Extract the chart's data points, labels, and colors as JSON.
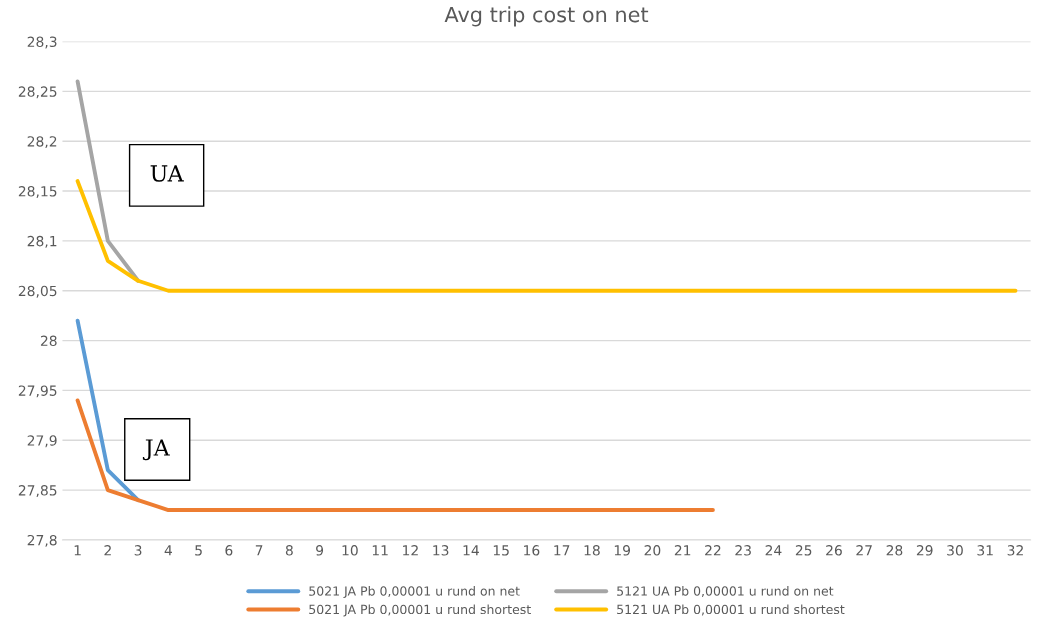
{
  "chart_data": {
    "type": "line",
    "title": "Avg trip cost on net",
    "categories": [
      "1",
      "2",
      "3",
      "4",
      "5",
      "6",
      "7",
      "8",
      "9",
      "10",
      "11",
      "12",
      "13",
      "14",
      "15",
      "16",
      "17",
      "18",
      "19",
      "20",
      "21",
      "22",
      "23",
      "24",
      "25",
      "26",
      "27",
      "28",
      "29",
      "30",
      "31",
      "32"
    ],
    "series": [
      {
        "name": "5021 JA Pb 0,00001 u rund on net",
        "color": "#5b9bd5",
        "values": [
          28.02,
          27.87,
          27.84,
          null,
          null,
          null,
          null,
          null,
          null,
          null,
          null,
          null,
          null,
          null,
          null,
          null,
          null,
          null,
          null,
          null,
          null,
          null,
          null,
          null,
          null,
          null,
          null,
          null,
          null,
          null,
          null,
          null
        ]
      },
      {
        "name": "5021 JA Pb 0,00001 u rund shortest",
        "color": "#ed7d31",
        "values": [
          27.94,
          27.85,
          27.84,
          27.83,
          27.83,
          27.83,
          27.83,
          27.83,
          27.83,
          27.83,
          27.83,
          27.83,
          27.83,
          27.83,
          27.83,
          27.83,
          27.83,
          27.83,
          27.83,
          27.83,
          27.83,
          27.83,
          null,
          null,
          null,
          null,
          null,
          null,
          null,
          null,
          null,
          null
        ]
      },
      {
        "name": "5121 UA Pb 0,00001 u rund on net",
        "color": "#a5a5a5",
        "values": [
          28.26,
          28.1,
          28.06,
          null,
          null,
          null,
          null,
          null,
          null,
          null,
          null,
          null,
          null,
          null,
          null,
          null,
          null,
          null,
          null,
          null,
          null,
          null,
          null,
          null,
          null,
          null,
          null,
          null,
          null,
          null,
          null,
          null
        ]
      },
      {
        "name": "5121 UA Pb 0,00001 u rund shortest",
        "color": "#ffc000",
        "values": [
          28.16,
          28.08,
          28.06,
          28.05,
          28.05,
          28.05,
          28.05,
          28.05,
          28.05,
          28.05,
          28.05,
          28.05,
          28.05,
          28.05,
          28.05,
          28.05,
          28.05,
          28.05,
          28.05,
          28.05,
          28.05,
          28.05,
          28.05,
          28.05,
          28.05,
          28.05,
          28.05,
          28.05,
          28.05,
          28.05,
          28.05,
          28.05
        ]
      }
    ],
    "ylim": [
      27.8,
      28.3
    ],
    "yticks": [
      {
        "value": 27.8,
        "label": "27,8"
      },
      {
        "value": 27.85,
        "label": "27,85"
      },
      {
        "value": 27.9,
        "label": "27,9"
      },
      {
        "value": 27.95,
        "label": "27,95"
      },
      {
        "value": 28,
        "label": "28"
      },
      {
        "value": 28.05,
        "label": "28,05"
      },
      {
        "value": 28.1,
        "label": "28,1"
      },
      {
        "value": 28.15,
        "label": "28,15"
      },
      {
        "value": 28.2,
        "label": "28,2"
      },
      {
        "value": 28.25,
        "label": "28,25"
      },
      {
        "value": 28.3,
        "label": "28,3"
      }
    ],
    "grid": "y",
    "legend": "bottom",
    "marker": "none",
    "line_style": "solid",
    "annotations": [
      "UA",
      "JA"
    ]
  }
}
